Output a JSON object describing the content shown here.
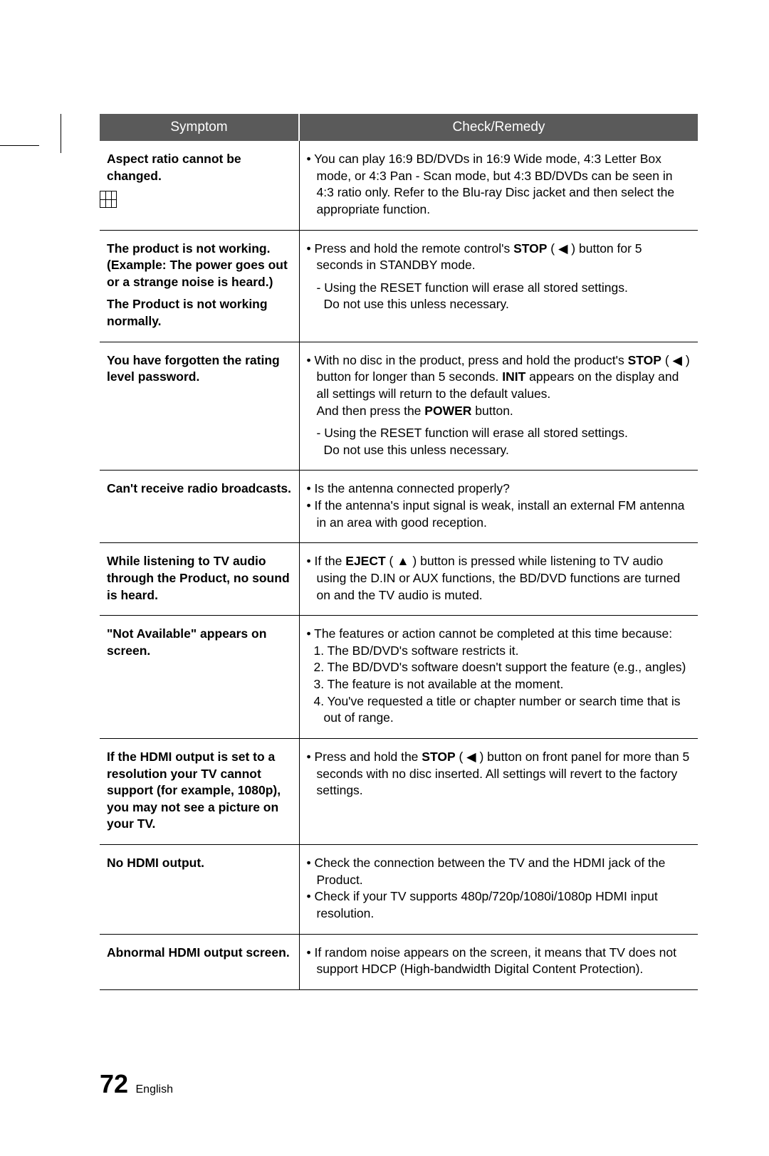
{
  "header": {
    "symptom": "Symptom",
    "remedy": "Check/Remedy"
  },
  "rows": [
    {
      "symptom": "Aspect ratio cannot be changed.",
      "remedy": "• You can play 16:9 BD/DVDs in 16:9 Wide mode, 4:3 Letter Box mode, or 4:3 Pan - Scan mode, but 4:3 BD/DVDs can be seen in 4:3 ratio only. Refer to the Blu-ray Disc jacket and then select the appropriate function."
    },
    {
      "symptom_lines": [
        "The product is not working.",
        "(Example: The power goes out or a strange noise is heard.)",
        "The Product is not working normally."
      ],
      "remedy_lines": [
        "• Press and hold the remote control's <b>STOP</b> ( ◀ ) button for 5 seconds in STANDBY mode.",
        "- Using the RESET function will erase all stored settings.",
        "Do not use this unless necessary."
      ]
    },
    {
      "symptom": "You have forgotten the rating level password.",
      "remedy_lines": [
        "• With no disc in the product, press and hold the product's <b>STOP</b> ( ◀ ) button for longer than 5 seconds. <b>INIT</b> appears on the display and all settings will return to the default values.",
        "And then press the <b>POWER</b> button.",
        "- Using the RESET function will erase all stored settings.",
        "Do not use this unless necessary."
      ]
    },
    {
      "symptom": "Can't receive radio broadcasts.",
      "remedy_lines": [
        "• Is the antenna connected properly?",
        "• If the antenna's input signal is weak, install an external FM antenna in an area with good reception."
      ]
    },
    {
      "symptom": "While listening to TV audio through the Product, no sound is heard.",
      "remedy": "• If the <b>EJECT</b> ( ▲ ) button is pressed while listening to TV audio using the D.IN or AUX functions, the BD/DVD functions are turned on and the TV audio is muted."
    },
    {
      "symptom": "\"Not Available\" appears on screen.",
      "remedy_lines": [
        "• The features or action cannot be completed at this time because:",
        "1. The BD/DVD's software restricts it.",
        "2. The BD/DVD's software doesn't support the feature (e.g., angles)",
        "3. The feature is not available at the moment.",
        "4. You've requested a title or chapter number or search time that is out of range."
      ]
    },
    {
      "symptom": "If the HDMI output is set to a resolution your TV cannot support (for example, 1080p), you may not see a picture on your TV.",
      "remedy": "• Press and hold the <b>STOP</b> ( ◀ ) button on front panel for more than 5 seconds with no disc inserted. All settings will revert to the factory settings."
    },
    {
      "symptom": "No HDMI output.",
      "remedy_lines": [
        "• Check the connection between the TV and the HDMI jack of the Product.",
        "• Check if your TV supports 480p/720p/1080i/1080p HDMI input resolution."
      ]
    },
    {
      "symptom": "Abnormal HDMI output screen.",
      "remedy": "• If random noise appears on the screen, it means that TV does not support HDCP (High-bandwidth Digital Content Protection)."
    }
  ],
  "footer": {
    "page": "72",
    "lang": "English"
  }
}
